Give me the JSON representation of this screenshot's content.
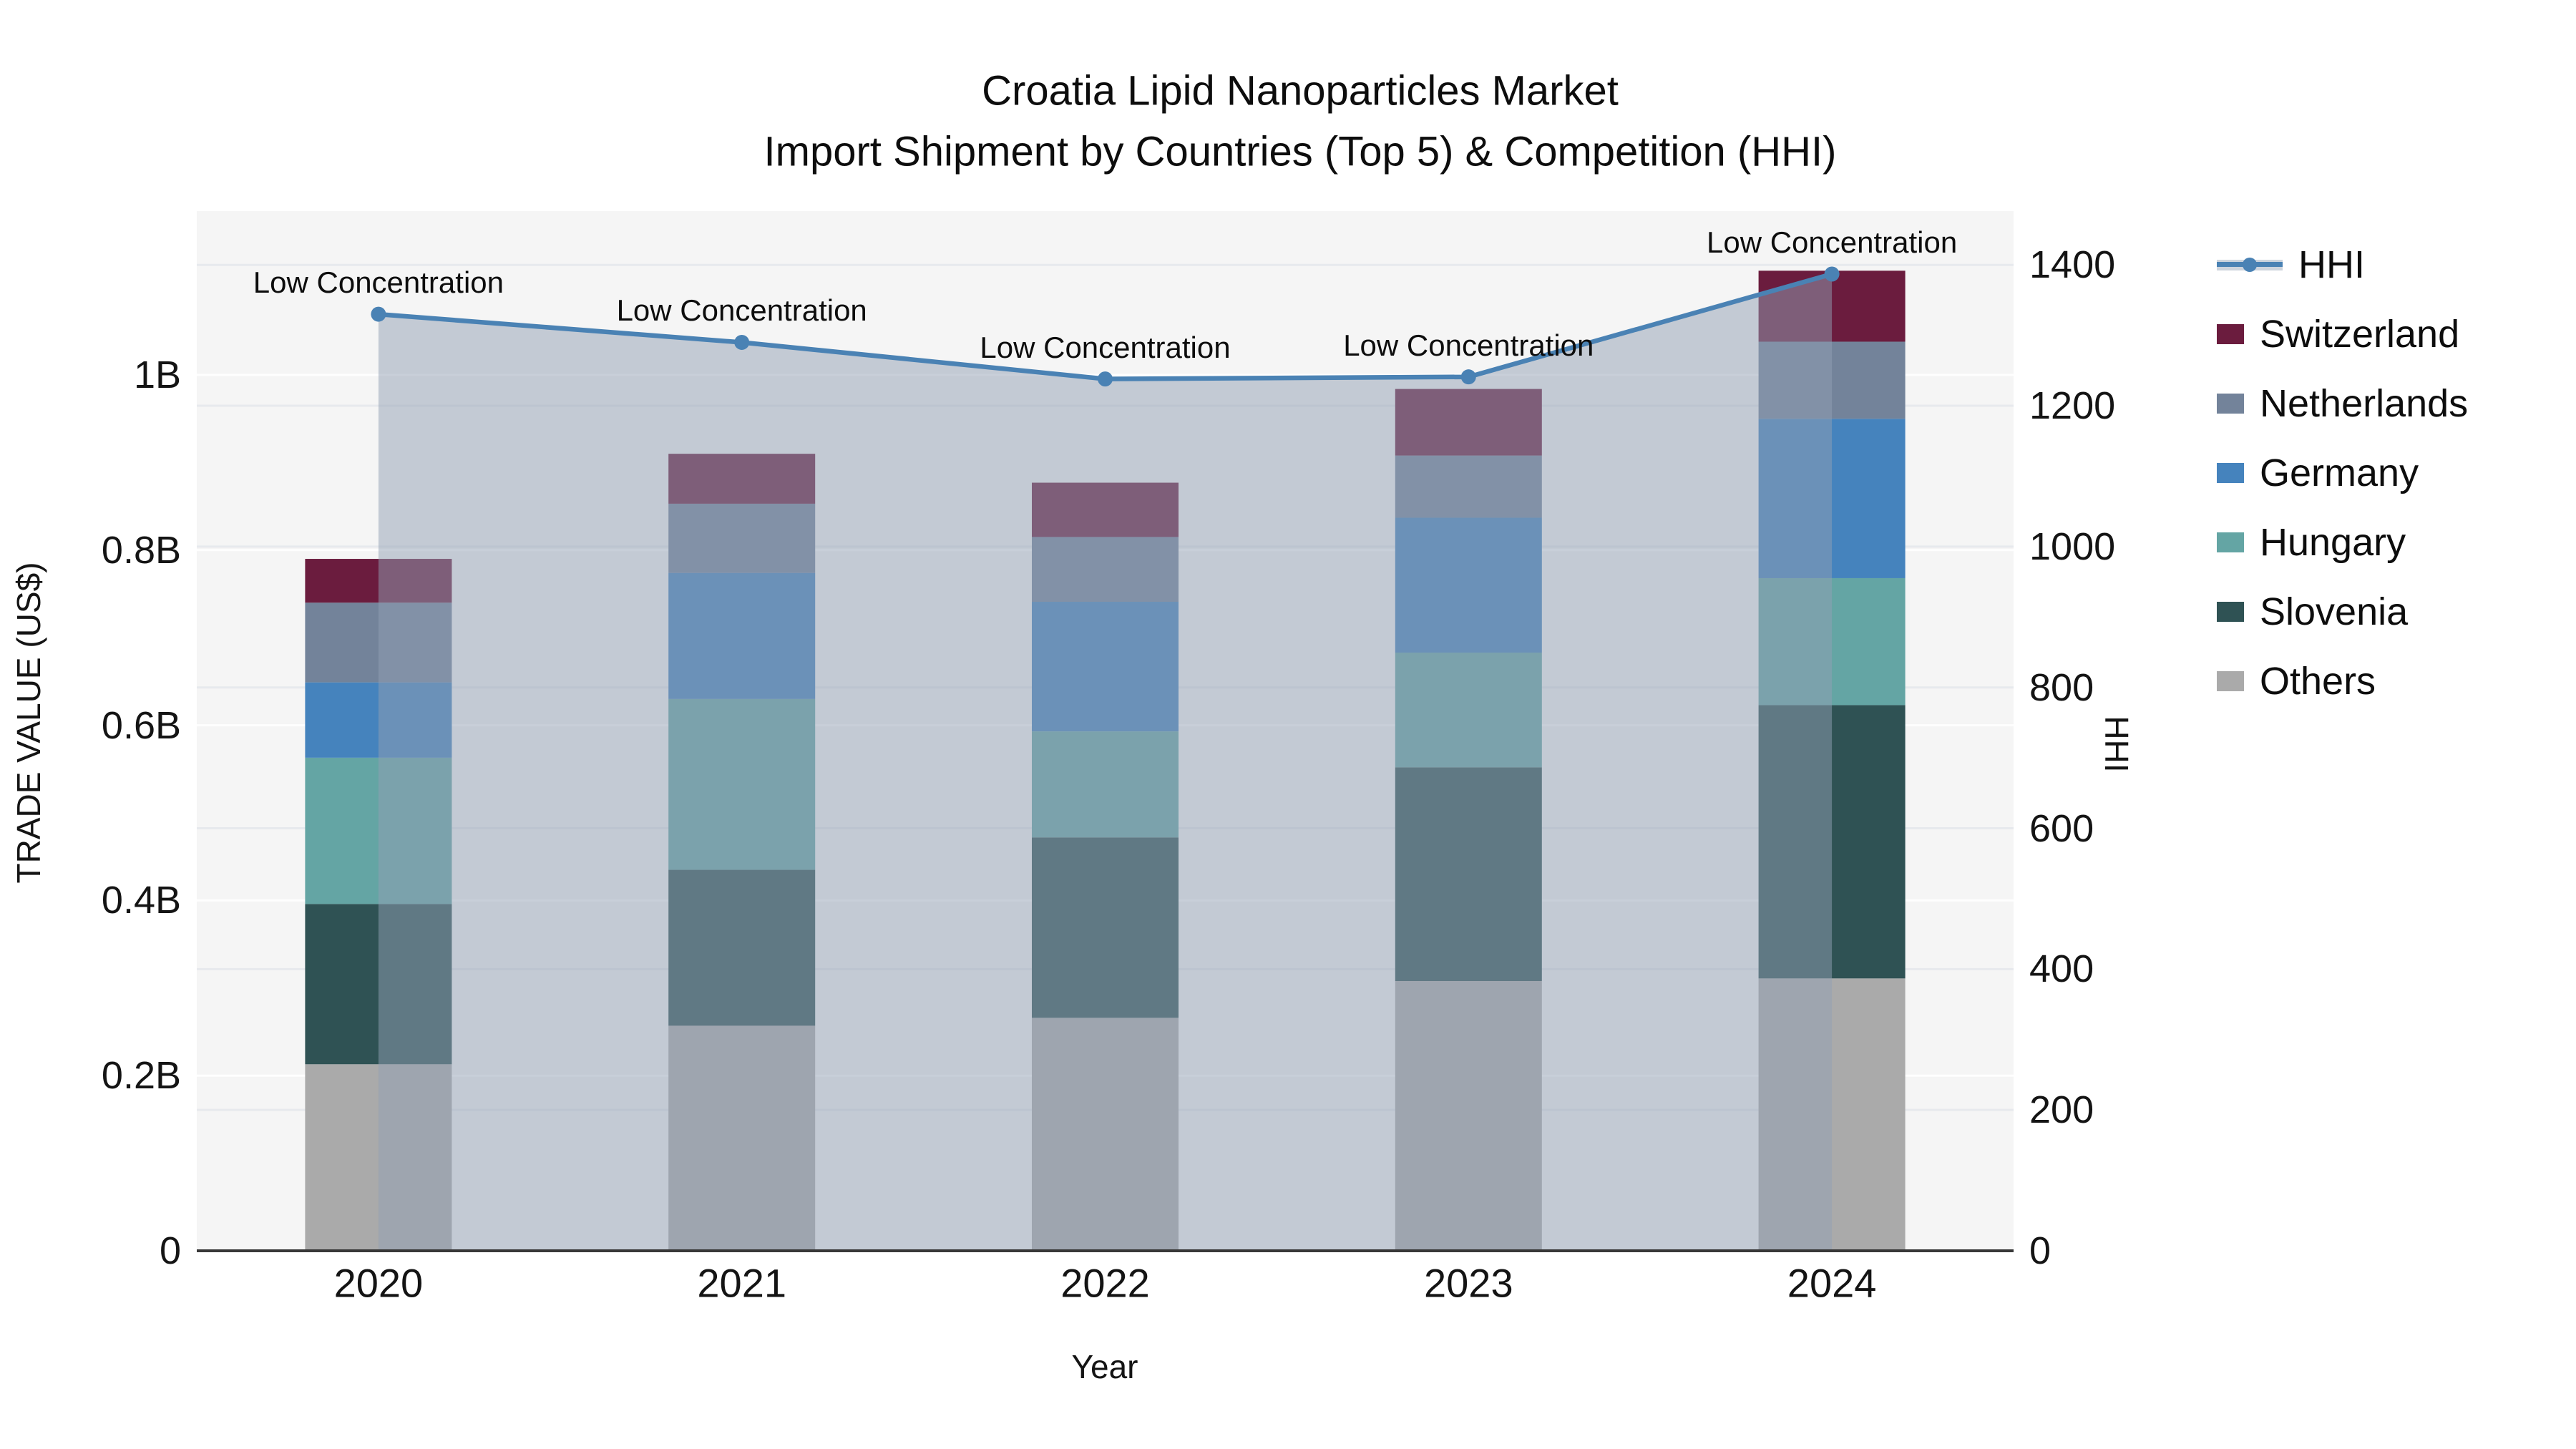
{
  "header": {
    "title": "Croatia Lipid Nanoparticles Market",
    "subtitle": "Import Shipment by Countries (Top 5) & Competition (HHI)"
  },
  "colors": {
    "plot_bg": "#f5f5f5",
    "grid_left_axis": "rgba(255,255,255,0.9)",
    "grid_right_axis": "#e7e9ed",
    "axis_line": "#383838",
    "hhi_line": "#4a82b4",
    "hhi_area_fill": "rgba(145,159,180,0.5)",
    "text": "#111111"
  },
  "chart_data": {
    "type": "combo: stacked-bar + line",
    "title": "Croatia Lipid Nanoparticles Market",
    "subtitle": "Import Shipment by Countries (Top 5) & Competition (HHI)",
    "xlabel": "Year",
    "ylabel_left": "TRADE VALUE (US$)",
    "ylabel_right": "HHI",
    "grid": true,
    "legend_position": "right",
    "categories": [
      "2020",
      "2021",
      "2022",
      "2023",
      "2024"
    ],
    "bar_value_unit": "billions of US$",
    "bar_series_bottom_to_top": [
      {
        "name": "Others",
        "color": "#aaaaaa",
        "values": [
          0.213,
          0.257,
          0.266,
          0.308,
          0.311
        ]
      },
      {
        "name": "Slovenia",
        "color": "#2f5254",
        "values": [
          0.183,
          0.178,
          0.206,
          0.244,
          0.312
        ]
      },
      {
        "name": "Hungary",
        "color": "#64a5a4",
        "values": [
          0.167,
          0.195,
          0.121,
          0.131,
          0.145
        ]
      },
      {
        "name": "Germany",
        "color": "#4583bd",
        "values": [
          0.086,
          0.144,
          0.148,
          0.154,
          0.182
        ]
      },
      {
        "name": "Netherlands",
        "color": "#73839a",
        "values": [
          0.091,
          0.079,
          0.074,
          0.071,
          0.088
        ]
      },
      {
        "name": "Switzerland",
        "color": "#6b1c3e",
        "values": [
          0.05,
          0.057,
          0.062,
          0.076,
          0.081
        ]
      }
    ],
    "bar_totals": [
      0.79,
      0.91,
      0.877,
      0.984,
      1.119
    ],
    "line_series": {
      "name": "HHI",
      "color": "#4a82b4",
      "area_fill": "rgba(145,159,180,0.5)",
      "values": [
        1330,
        1290,
        1238,
        1241,
        1387
      ]
    },
    "annotations": [
      {
        "category": "2020",
        "text": "Low Concentration"
      },
      {
        "category": "2021",
        "text": "Low Concentration"
      },
      {
        "category": "2022",
        "text": "Low Concentration"
      },
      {
        "category": "2023",
        "text": "Low Concentration"
      },
      {
        "category": "2024",
        "text": "Low Concentration"
      }
    ],
    "left_axis": {
      "range": [
        0,
        1.19
      ],
      "ticks": [
        {
          "label": "0",
          "value": 0
        },
        {
          "label": "0.2B",
          "value": 0.2
        },
        {
          "label": "0.4B",
          "value": 0.4
        },
        {
          "label": "0.6B",
          "value": 0.6
        },
        {
          "label": "0.8B",
          "value": 0.8
        },
        {
          "label": "1B",
          "value": 1.0
        }
      ]
    },
    "right_axis": {
      "range": [
        0,
        1476
      ],
      "ticks": [
        {
          "label": "0",
          "value": 0
        },
        {
          "label": "200",
          "value": 200
        },
        {
          "label": "400",
          "value": 400
        },
        {
          "label": "600",
          "value": 600
        },
        {
          "label": "800",
          "value": 800
        },
        {
          "label": "1000",
          "value": 1000
        },
        {
          "label": "1200",
          "value": 1200
        },
        {
          "label": "1400",
          "value": 1400
        }
      ]
    },
    "legend": [
      "HHI",
      "Switzerland",
      "Netherlands",
      "Germany",
      "Hungary",
      "Slovenia",
      "Others"
    ]
  }
}
